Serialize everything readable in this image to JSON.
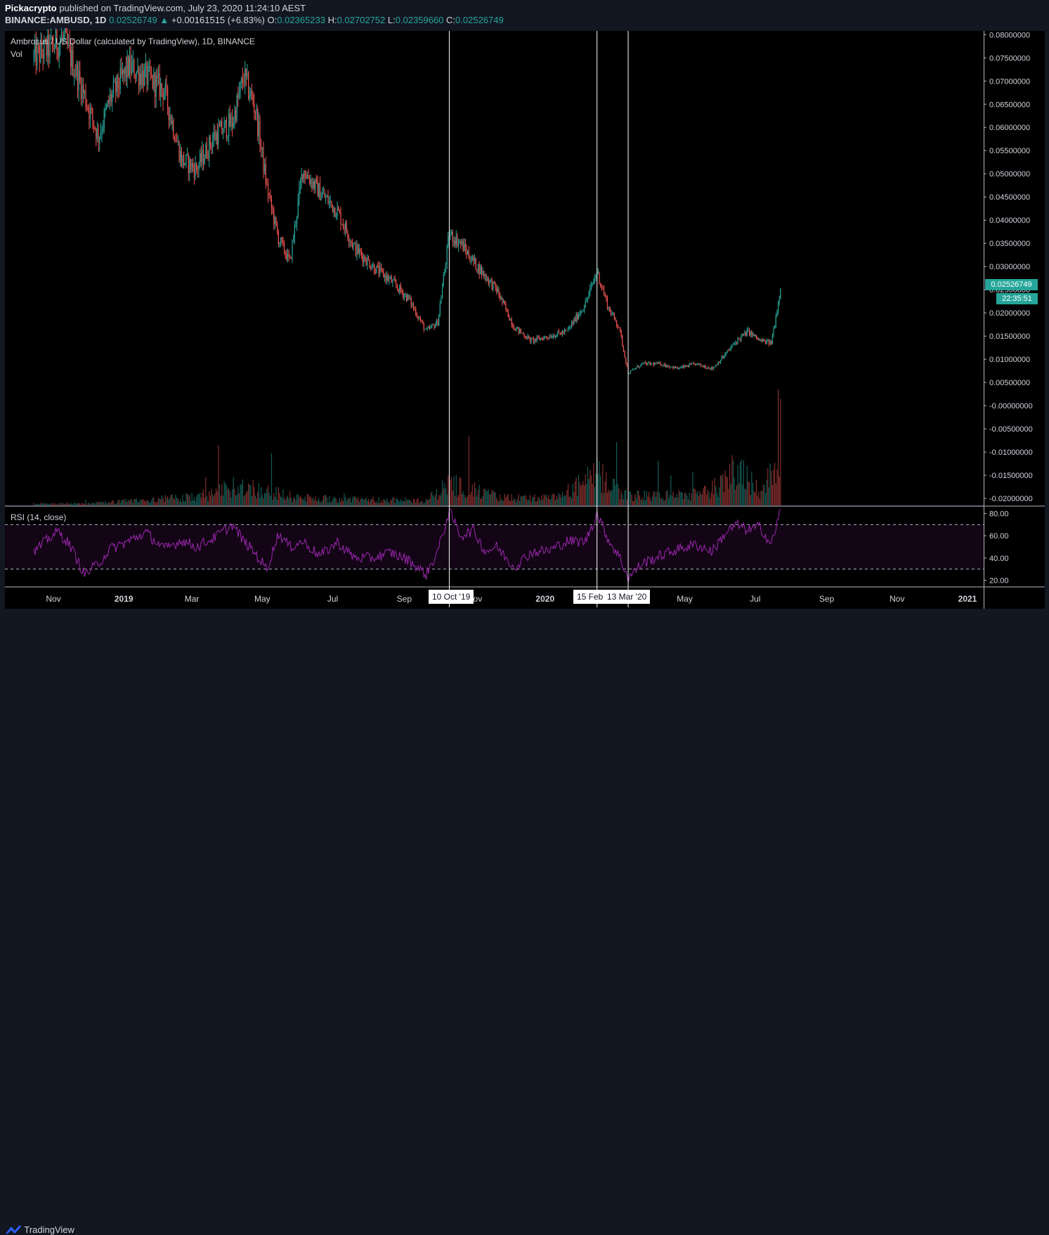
{
  "header": {
    "publisher": "Pickacrypto",
    "published_text": "published on TradingView.com, July 23, 2020 11:24:10 AEST",
    "symbol_line": "BINANCE:AMBUSD, 1D",
    "last": "0.02526749",
    "change_arrow": "▲",
    "change": "+0.00161515 (+6.83%)",
    "o_label": "O:",
    "o": "0.02365233",
    "h_label": "H:",
    "h": "0.02702752",
    "l_label": "L:",
    "l": "0.02359660",
    "c_label": "C:",
    "c": "0.02526749"
  },
  "legend": {
    "title": "Ambrosus / US Dollar (calculated by TradingView), 1D, BINANCE",
    "vol": "Vol",
    "rsi": "RSI (14, close)"
  },
  "price_tag": "0.02526749",
  "countdown_tag": "22:35:51",
  "markers": [
    "10 Oct '19",
    "15 Feb",
    "13 Mar '20"
  ],
  "footer": {
    "brand": "TradingView",
    "logo_icon": "tradingview-logo-icon"
  },
  "colors": {
    "up": "#26a69a",
    "down": "#ef5350",
    "rsi": "#9c27b0",
    "background": "#000000"
  },
  "chart_data": {
    "type": "candlestick",
    "title": "Ambrosus / US Dollar (calculated by TradingView), 1D, BINANCE",
    "price_axis": [
      "0.08000000",
      "0.07500000",
      "0.07000000",
      "0.06500000",
      "0.06000000",
      "0.05500000",
      "0.05000000",
      "0.04500000",
      "0.04000000",
      "0.03500000",
      "0.03000000",
      "0.02500000",
      "0.02000000",
      "0.01500000",
      "0.01000000",
      "0.00500000",
      "-0.00000000",
      "-0.00500000",
      "-0.01000000",
      "-0.01500000",
      "-0.02000000"
    ],
    "ylim": [
      -0.0215,
      0.0808
    ],
    "x_ticks": [
      "Nov",
      "2019",
      "Mar",
      "May",
      "Jul",
      "Sep",
      "Nov",
      "2020",
      "May",
      "Jul",
      "Sep",
      "Nov",
      "2021"
    ],
    "price_series": {
      "dates": [
        "2018-10-15",
        "2018-11-10",
        "2018-11-25",
        "2018-12-10",
        "2018-12-20",
        "2019-01-05",
        "2019-01-20",
        "2019-02-05",
        "2019-02-20",
        "2019-03-05",
        "2019-03-20",
        "2019-04-05",
        "2019-04-15",
        "2019-04-25",
        "2019-05-05",
        "2019-05-15",
        "2019-05-25",
        "2019-06-05",
        "2019-06-20",
        "2019-07-05",
        "2019-07-20",
        "2019-08-05",
        "2019-08-20",
        "2019-09-05",
        "2019-09-20",
        "2019-09-30",
        "2019-10-10",
        "2019-10-20",
        "2019-10-31",
        "2019-11-10",
        "2019-11-20",
        "2019-12-05",
        "2019-12-20",
        "2020-01-05",
        "2020-01-20",
        "2020-02-05",
        "2020-02-15",
        "2020-02-25",
        "2020-03-05",
        "2020-03-13",
        "2020-03-25",
        "2020-04-10",
        "2020-04-25",
        "2020-05-10",
        "2020-05-25",
        "2020-06-05",
        "2020-06-15",
        "2020-06-25",
        "2020-07-05",
        "2020-07-15",
        "2020-07-23"
      ],
      "close": [
        0.075,
        0.079,
        0.069,
        0.058,
        0.066,
        0.073,
        0.071,
        0.068,
        0.053,
        0.051,
        0.058,
        0.061,
        0.071,
        0.064,
        0.047,
        0.036,
        0.031,
        0.051,
        0.046,
        0.042,
        0.034,
        0.03,
        0.027,
        0.023,
        0.016,
        0.018,
        0.037,
        0.035,
        0.031,
        0.028,
        0.025,
        0.017,
        0.014,
        0.015,
        0.016,
        0.022,
        0.029,
        0.021,
        0.017,
        0.007,
        0.009,
        0.009,
        0.008,
        0.009,
        0.008,
        0.011,
        0.014,
        0.016,
        0.014,
        0.0135,
        0.0253
      ]
    },
    "volume_series": {
      "dates": [
        "2018-12-01",
        "2019-03-15",
        "2019-04-10",
        "2019-06-01",
        "2019-09-20",
        "2019-10-10",
        "2019-10-25",
        "2019-11-25",
        "2020-01-10",
        "2020-02-15",
        "2020-03-13",
        "2020-05-15",
        "2020-06-05",
        "2020-06-15",
        "2020-07-05",
        "2020-07-20",
        "2020-07-23"
      ],
      "values": [
        0.05,
        0.25,
        0.55,
        0.2,
        0.12,
        0.6,
        0.45,
        0.2,
        0.2,
        0.8,
        0.25,
        0.3,
        0.6,
        1.1,
        0.4,
        1.0,
        2.4
      ]
    },
    "rsi": {
      "name": "RSI (14, close)",
      "axis": [
        "80.00",
        "60.00",
        "40.00",
        "20.00"
      ],
      "ylim": [
        14,
        86
      ],
      "band": [
        30,
        70
      ],
      "dates": [
        "2018-10-15",
        "2018-10-25",
        "2018-11-05",
        "2018-11-15",
        "2018-11-28",
        "2018-12-10",
        "2018-12-20",
        "2019-01-05",
        "2019-01-20",
        "2019-02-05",
        "2019-02-20",
        "2019-03-05",
        "2019-03-20",
        "2019-04-05",
        "2019-04-15",
        "2019-04-25",
        "2019-05-05",
        "2019-05-15",
        "2019-05-25",
        "2019-06-05",
        "2019-06-20",
        "2019-07-05",
        "2019-07-20",
        "2019-08-05",
        "2019-08-20",
        "2019-09-05",
        "2019-09-20",
        "2019-09-30",
        "2019-10-10",
        "2019-10-20",
        "2019-10-31",
        "2019-11-10",
        "2019-11-20",
        "2019-12-05",
        "2019-12-20",
        "2020-01-05",
        "2020-01-20",
        "2020-02-05",
        "2020-02-15",
        "2020-02-25",
        "2020-03-05",
        "2020-03-13",
        "2020-03-25",
        "2020-04-10",
        "2020-04-25",
        "2020-05-10",
        "2020-05-25",
        "2020-06-05",
        "2020-06-15",
        "2020-06-25",
        "2020-07-05",
        "2020-07-15",
        "2020-07-23"
      ],
      "values": [
        45,
        55,
        64,
        52,
        25,
        35,
        48,
        55,
        63,
        48,
        56,
        50,
        58,
        70,
        55,
        44,
        30,
        62,
        50,
        55,
        42,
        54,
        40,
        40,
        45,
        38,
        25,
        46,
        82,
        60,
        65,
        46,
        50,
        32,
        45,
        47,
        55,
        55,
        80,
        56,
        42,
        22,
        35,
        42,
        48,
        52,
        46,
        62,
        70,
        65,
        68,
        52,
        83
      ]
    }
  }
}
